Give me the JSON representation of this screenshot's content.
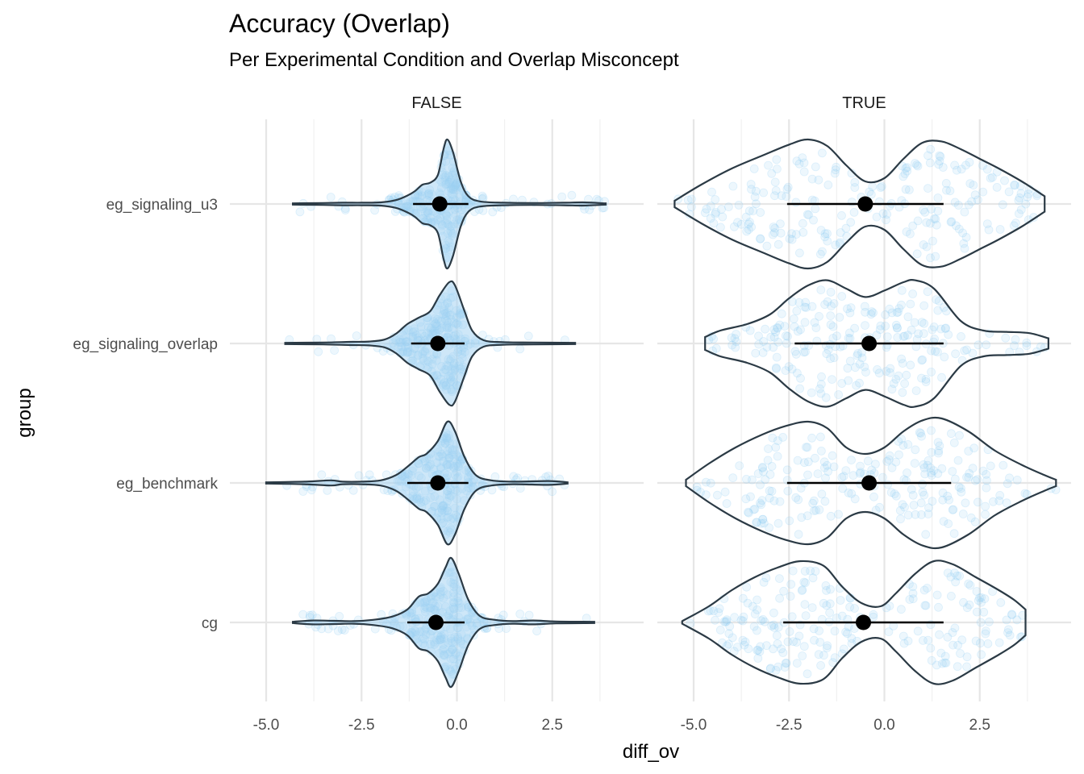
{
  "chart_data": {
    "type": "violin",
    "title": "Accuracy (Overlap)",
    "subtitle": "Per Experimental Condition and Overlap Misconcept",
    "xlabel": "diff_ov",
    "ylabel": "group",
    "xlim": [
      -5.2,
      4.6
    ],
    "x_ticks": [
      -5.0,
      -2.5,
      0.0,
      2.5
    ],
    "x_tick_labels": [
      "-5.0",
      "-2.5",
      "0.0",
      "2.5"
    ],
    "categories": [
      "eg_signaling_u3",
      "eg_signaling_overlap",
      "eg_benchmark",
      "cg"
    ],
    "grid": true,
    "legend": "none",
    "colors": {
      "violin_fill": "#a6d4f2",
      "violin_outline": "#2b3a45",
      "points": "#8ccbf5",
      "mean": "#000000"
    },
    "facets": [
      {
        "label": "FALSE",
        "groups": [
          {
            "name": "eg_signaling_u3",
            "mean": -0.45,
            "ci": [
              -1.15,
              0.3
            ],
            "range": [
              -4.3,
              3.9
            ],
            "density": [
              [
                -4.3,
                0.01
              ],
              [
                -3.5,
                0.015
              ],
              [
                -3.0,
                0.02
              ],
              [
                -2.5,
                0.02
              ],
              [
                -2.0,
                0.025
              ],
              [
                -1.6,
                0.06
              ],
              [
                -1.3,
                0.13
              ],
              [
                -1.1,
                0.2
              ],
              [
                -0.9,
                0.3
              ],
              [
                -0.7,
                0.33
              ],
              [
                -0.5,
                0.45
              ],
              [
                -0.35,
                0.85
              ],
              [
                -0.25,
                1.0
              ],
              [
                -0.1,
                0.8
              ],
              [
                0.1,
                0.35
              ],
              [
                0.3,
                0.12
              ],
              [
                0.6,
                0.04
              ],
              [
                1.2,
                0.02
              ],
              [
                2.0,
                0.015
              ],
              [
                2.8,
                0.02
              ],
              [
                3.3,
                0.025
              ],
              [
                3.9,
                0.01
              ]
            ]
          },
          {
            "name": "eg_signaling_overlap",
            "mean": -0.5,
            "ci": [
              -1.2,
              0.2
            ],
            "range": [
              -4.5,
              3.1
            ],
            "density": [
              [
                -4.5,
                0.01
              ],
              [
                -3.5,
                0.015
              ],
              [
                -2.8,
                0.025
              ],
              [
                -2.3,
                0.03
              ],
              [
                -1.9,
                0.06
              ],
              [
                -1.6,
                0.15
              ],
              [
                -1.3,
                0.3
              ],
              [
                -1.0,
                0.4
              ],
              [
                -0.7,
                0.5
              ],
              [
                -0.45,
                0.75
              ],
              [
                -0.2,
                0.95
              ],
              [
                -0.05,
                0.9
              ],
              [
                0.2,
                0.5
              ],
              [
                0.4,
                0.2
              ],
              [
                0.7,
                0.05
              ],
              [
                1.2,
                0.02
              ],
              [
                2.0,
                0.015
              ],
              [
                3.1,
                0.01
              ]
            ]
          },
          {
            "name": "eg_benchmark",
            "mean": -0.5,
            "ci": [
              -1.3,
              0.3
            ],
            "range": [
              -5.0,
              2.9
            ],
            "density": [
              [
                -5.0,
                0.01
              ],
              [
                -4.0,
                0.02
              ],
              [
                -3.3,
                0.04
              ],
              [
                -3.0,
                0.02
              ],
              [
                -2.5,
                0.02
              ],
              [
                -2.0,
                0.04
              ],
              [
                -1.6,
                0.12
              ],
              [
                -1.3,
                0.25
              ],
              [
                -1.0,
                0.4
              ],
              [
                -0.8,
                0.45
              ],
              [
                -0.5,
                0.65
              ],
              [
                -0.25,
                0.95
              ],
              [
                -0.05,
                0.8
              ],
              [
                0.2,
                0.4
              ],
              [
                0.5,
                0.12
              ],
              [
                0.9,
                0.04
              ],
              [
                1.5,
                0.02
              ],
              [
                2.4,
                0.03
              ],
              [
                2.9,
                0.01
              ]
            ]
          },
          {
            "name": "cg",
            "mean": -0.55,
            "ci": [
              -1.3,
              0.2
            ],
            "range": [
              -4.3,
              3.6
            ],
            "density": [
              [
                -4.3,
                0.01
              ],
              [
                -3.8,
                0.03
              ],
              [
                -3.2,
                0.025
              ],
              [
                -2.7,
                0.02
              ],
              [
                -2.2,
                0.04
              ],
              [
                -1.7,
                0.09
              ],
              [
                -1.3,
                0.2
              ],
              [
                -1.0,
                0.4
              ],
              [
                -0.75,
                0.45
              ],
              [
                -0.5,
                0.6
              ],
              [
                -0.3,
                0.85
              ],
              [
                -0.15,
                1.0
              ],
              [
                0.05,
                0.75
              ],
              [
                0.3,
                0.35
              ],
              [
                0.6,
                0.1
              ],
              [
                1.0,
                0.04
              ],
              [
                1.5,
                0.02
              ],
              [
                2.0,
                0.03
              ],
              [
                2.6,
                0.015
              ],
              [
                3.6,
                0.01
              ]
            ]
          }
        ]
      },
      {
        "label": "TRUE",
        "groups": [
          {
            "name": "eg_signaling_u3",
            "mean": -0.5,
            "ci": [
              -2.55,
              1.55
            ],
            "range": [
              -5.5,
              4.2
            ],
            "density": [
              [
                -5.5,
                0.05
              ],
              [
                -4.8,
                0.3
              ],
              [
                -4.0,
                0.55
              ],
              [
                -3.2,
                0.75
              ],
              [
                -2.5,
                0.92
              ],
              [
                -2.0,
                1.0
              ],
              [
                -1.5,
                0.9
              ],
              [
                -1.0,
                0.6
              ],
              [
                -0.5,
                0.35
              ],
              [
                0.0,
                0.4
              ],
              [
                0.5,
                0.7
              ],
              [
                1.0,
                0.95
              ],
              [
                1.5,
                0.97
              ],
              [
                2.0,
                0.85
              ],
              [
                2.5,
                0.7
              ],
              [
                3.0,
                0.55
              ],
              [
                3.6,
                0.35
              ],
              [
                4.2,
                0.12
              ]
            ]
          },
          {
            "name": "eg_signaling_overlap",
            "mean": -0.4,
            "ci": [
              -2.35,
              1.55
            ],
            "range": [
              -4.7,
              4.3
            ],
            "density": [
              [
                -4.7,
                0.1
              ],
              [
                -4.3,
                0.2
              ],
              [
                -3.6,
                0.3
              ],
              [
                -3.0,
                0.45
              ],
              [
                -2.5,
                0.7
              ],
              [
                -2.0,
                0.9
              ],
              [
                -1.5,
                0.98
              ],
              [
                -1.0,
                0.85
              ],
              [
                -0.5,
                0.72
              ],
              [
                0.0,
                0.82
              ],
              [
                0.5,
                0.95
              ],
              [
                0.8,
                0.98
              ],
              [
                1.3,
                0.85
              ],
              [
                2.0,
                0.35
              ],
              [
                2.6,
                0.2
              ],
              [
                3.2,
                0.18
              ],
              [
                3.8,
                0.16
              ],
              [
                4.3,
                0.08
              ]
            ]
          },
          {
            "name": "eg_benchmark",
            "mean": -0.4,
            "ci": [
              -2.55,
              1.75
            ],
            "range": [
              -5.2,
              4.5
            ],
            "density": [
              [
                -5.2,
                0.05
              ],
              [
                -4.6,
                0.3
              ],
              [
                -3.9,
                0.55
              ],
              [
                -3.2,
                0.75
              ],
              [
                -2.6,
                0.88
              ],
              [
                -2.0,
                0.95
              ],
              [
                -1.5,
                0.85
              ],
              [
                -1.0,
                0.55
              ],
              [
                -0.5,
                0.45
              ],
              [
                0.0,
                0.55
              ],
              [
                0.5,
                0.8
              ],
              [
                1.0,
                0.97
              ],
              [
                1.5,
                1.0
              ],
              [
                2.2,
                0.8
              ],
              [
                2.9,
                0.5
              ],
              [
                3.6,
                0.28
              ],
              [
                4.2,
                0.12
              ],
              [
                4.5,
                0.05
              ]
            ]
          },
          {
            "name": "cg",
            "mean": -0.55,
            "ci": [
              -2.65,
              1.55
            ],
            "range": [
              -5.3,
              3.7
            ],
            "density": [
              [
                -5.3,
                0.02
              ],
              [
                -4.6,
                0.25
              ],
              [
                -4.0,
                0.5
              ],
              [
                -3.4,
                0.7
              ],
              [
                -2.8,
                0.85
              ],
              [
                -2.2,
                0.95
              ],
              [
                -1.6,
                0.88
              ],
              [
                -1.1,
                0.55
              ],
              [
                -0.6,
                0.3
              ],
              [
                -0.1,
                0.25
              ],
              [
                0.3,
                0.45
              ],
              [
                0.8,
                0.75
              ],
              [
                1.3,
                0.95
              ],
              [
                1.8,
                0.9
              ],
              [
                2.4,
                0.7
              ],
              [
                3.0,
                0.5
              ],
              [
                3.4,
                0.35
              ],
              [
                3.7,
                0.2
              ]
            ]
          }
        ]
      }
    ]
  }
}
